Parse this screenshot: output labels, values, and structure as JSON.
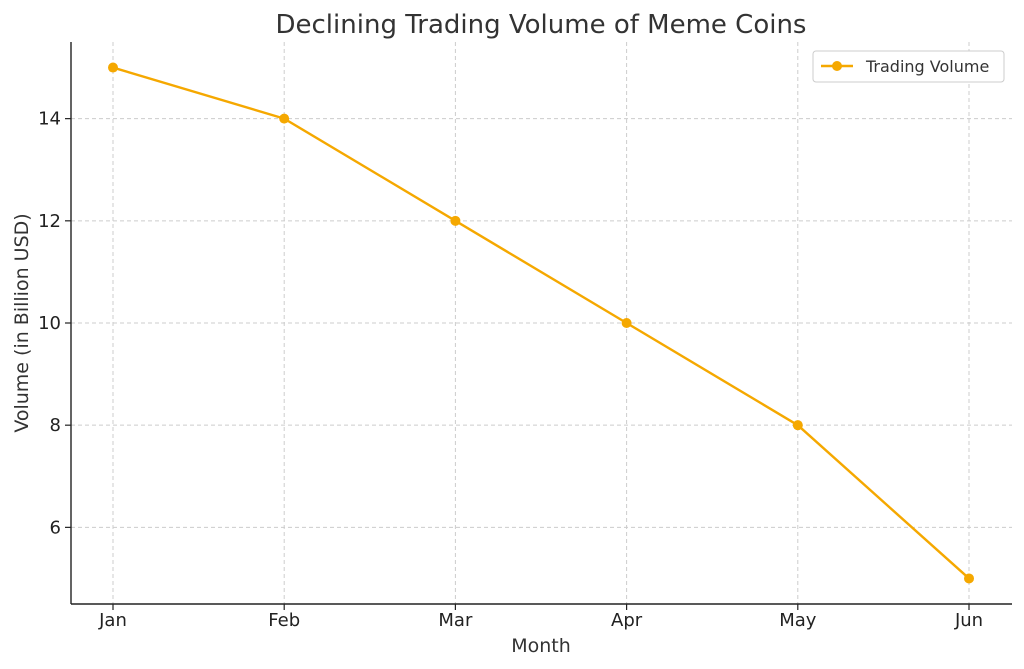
{
  "colors": {
    "series": "#f5a800",
    "text": "#333333",
    "grid": "#cccccc"
  },
  "chart_data": {
    "type": "line",
    "title": "Declining Trading Volume of Meme Coins",
    "xlabel": "Month",
    "ylabel": "Volume (in Billion USD)",
    "categories": [
      "Jan",
      "Feb",
      "Mar",
      "Apr",
      "May",
      "Jun"
    ],
    "series": [
      {
        "name": "Trading Volume",
        "values": [
          15,
          14,
          12,
          10,
          8,
          5
        ],
        "marker": "circle"
      }
    ],
    "ylim": [
      4.5,
      15.5
    ],
    "yticks": [
      6,
      8,
      10,
      12,
      14
    ],
    "grid": true,
    "legend": "top-right"
  }
}
